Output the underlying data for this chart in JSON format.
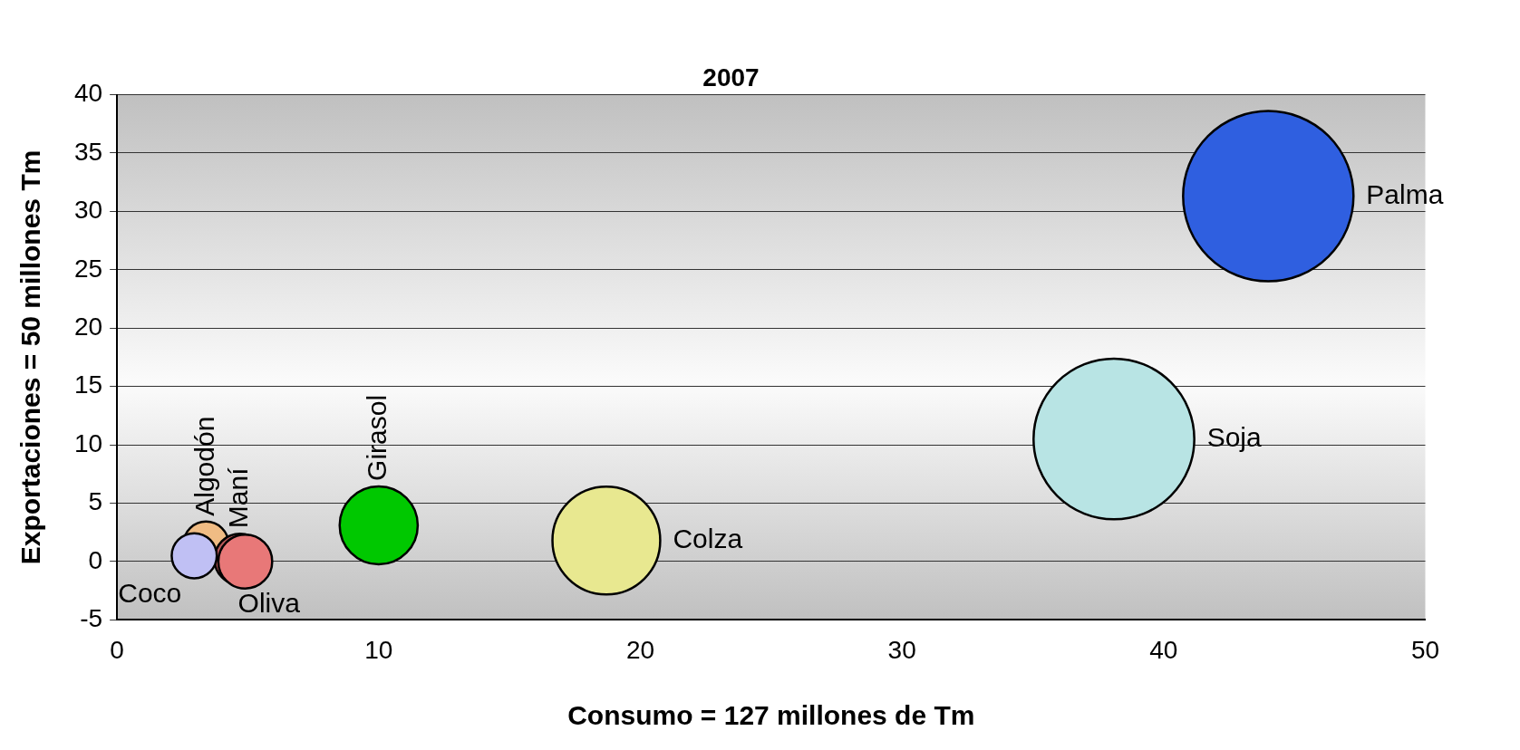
{
  "chart_data": {
    "type": "bubble",
    "title": "2007",
    "xlabel": "Consumo = 127 millones de Tm",
    "ylabel": "Exportaciones = 50 millones Tm",
    "xlim": [
      0,
      50
    ],
    "xticks": [
      0,
      10,
      20,
      30,
      40,
      50
    ],
    "ylim": [
      -5,
      40
    ],
    "yticks": [
      -5,
      0,
      5,
      10,
      15,
      20,
      25,
      30,
      35,
      40
    ],
    "grid": "y",
    "legend": false,
    "series": [
      {
        "name": "Palma",
        "color": "#2f5fe0",
        "x": [
          44.0
        ],
        "values": [
          31.3
        ],
        "sizes": [
          1
        ]
      },
      {
        "name": "Soja",
        "color": "#b8e4e4",
        "x": [
          38.1
        ],
        "values": [
          10.5
        ],
        "sizes": [
          0.89
        ]
      },
      {
        "name": "Colza",
        "color": "#e8e890",
        "x": [
          18.7
        ],
        "values": [
          1.8
        ],
        "sizes": [
          0.4
        ]
      },
      {
        "name": "Girasol",
        "color": "#00c800",
        "x": [
          10.0
        ],
        "values": [
          3.1
        ],
        "sizes": [
          0.21
        ]
      },
      {
        "name": "Algodón",
        "color": "#f0bc84",
        "x": [
          3.4
        ],
        "values": [
          1.5
        ],
        "sizes": [
          0.07
        ]
      },
      {
        "name": "Maní",
        "color": "#b85858",
        "x": [
          4.7
        ],
        "values": [
          0.2
        ],
        "sizes": [
          0.09
        ]
      },
      {
        "name": "Coco",
        "color": "#c0c0f4",
        "x": [
          2.95
        ],
        "values": [
          0.5
        ],
        "sizes": [
          0.07
        ]
      },
      {
        "name": "Oliva",
        "color": "#e87878",
        "x": [
          4.9
        ],
        "values": [
          0.0
        ],
        "sizes": [
          0.1
        ]
      }
    ]
  }
}
